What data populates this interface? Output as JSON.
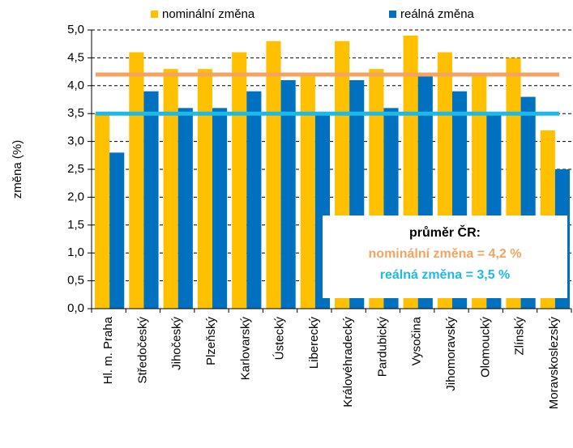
{
  "chart_data": {
    "type": "bar",
    "y_label": "změna (%)",
    "categories": [
      "Hl. m. Praha",
      "Středočeský",
      "Jihočeský",
      "Plzeňský",
      "Karlovarský",
      "Ústecký",
      "Liberecký",
      "Královéhradecký",
      "Pardubický",
      "Vysočina",
      "Jihomoravský",
      "Olomoucký",
      "Zlínský",
      "Moravskoslezský"
    ],
    "series": [
      {
        "name": "nominální změna",
        "color": "#FFC000",
        "values": [
          3.5,
          4.6,
          4.3,
          4.3,
          4.6,
          4.8,
          4.2,
          4.8,
          4.3,
          4.9,
          4.6,
          4.2,
          4.5,
          3.2
        ]
      },
      {
        "name": "reálná změna",
        "color": "#0070C0",
        "values": [
          2.8,
          3.9,
          3.6,
          3.6,
          3.9,
          4.1,
          3.5,
          4.1,
          3.6,
          4.2,
          3.9,
          3.5,
          3.8,
          2.5
        ]
      }
    ],
    "reference_lines": [
      {
        "value": 4.2,
        "color": "#F4A460"
      },
      {
        "value": 3.5,
        "color": "#1EB9E6"
      }
    ],
    "annotation": {
      "title": "průměr ČR:",
      "lines": [
        {
          "text": "nominální změna = 4,2 %",
          "color": "#F4A460"
        },
        {
          "text": "reálná změna = 3,5 %",
          "color": "#1EB9E6"
        }
      ]
    },
    "ylim": [
      0,
      5
    ],
    "yticks": [
      {
        "value": 0,
        "label": "0,0"
      },
      {
        "value": 0.5,
        "label": "0,5"
      },
      {
        "value": 1,
        "label": "1,0"
      },
      {
        "value": 1.5,
        "label": "1,5"
      },
      {
        "value": 2,
        "label": "2,0"
      },
      {
        "value": 2.5,
        "label": "2,5"
      },
      {
        "value": 3,
        "label": "3,0"
      },
      {
        "value": 3.5,
        "label": "3,5"
      },
      {
        "value": 4,
        "label": "4,0"
      },
      {
        "value": 4.5,
        "label": "4,5"
      },
      {
        "value": 5,
        "label": "5,0"
      }
    ],
    "grid": true
  }
}
